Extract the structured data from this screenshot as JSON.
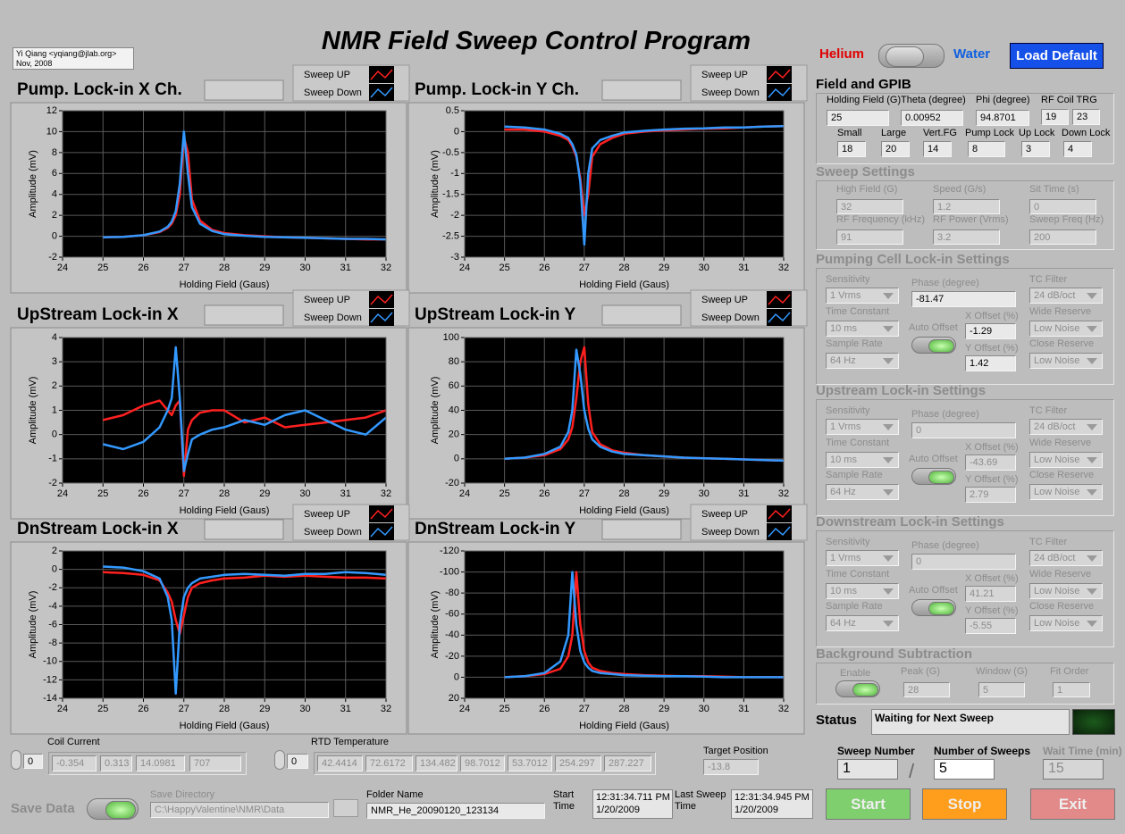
{
  "header": {
    "title": "NMR Field Sweep Control Program",
    "author": "Yi Qiang <yqiang@jlab.org>",
    "date": "Nov, 2008"
  },
  "mode": {
    "left": "Helium",
    "right": "Water",
    "load_default": "Load Default"
  },
  "field_gpib": {
    "title": "Field and GPIB",
    "fields": [
      {
        "label": "Holding Field (G)",
        "values": [
          25
        ]
      },
      {
        "label": "Theta (degree)",
        "values": [
          0.00952
        ]
      },
      {
        "label": "Phi (degree)",
        "values": [
          94.8701
        ]
      },
      {
        "label": "RF Coil TRG",
        "values": [
          19,
          23
        ]
      },
      {
        "label": "Small",
        "values": [
          18
        ]
      },
      {
        "label": "Large",
        "values": [
          20
        ]
      },
      {
        "label": "Vert.FG",
        "values": [
          14
        ]
      },
      {
        "label": "Pump Lock",
        "values": [
          8
        ]
      },
      {
        "label": "Up Lock",
        "values": [
          3
        ]
      },
      {
        "label": "Down Lock",
        "values": [
          4
        ]
      }
    ]
  },
  "sweep_settings": {
    "title": "Sweep Settings",
    "fields": [
      {
        "label": "High Field (G)",
        "value": 32
      },
      {
        "label": "Speed (G/s)",
        "value": 1.2
      },
      {
        "label": "Sit Time (s)",
        "value": 0
      },
      {
        "label": "RF Frequency (kHz)",
        "value": 91
      },
      {
        "label": "RF Power (Vrms)",
        "value": 3.2
      },
      {
        "label": "Sweep Freq (Hz)",
        "value": 200
      }
    ]
  },
  "lockins": [
    {
      "title": "Pumping Cell Lock-in Settings",
      "auto_offset": "Auto Offset",
      "fields": [
        {
          "label": "Sensitivity",
          "value": "1 Vrms"
        },
        {
          "label": "Phase (degree)",
          "value": -81.47
        },
        {
          "label": "TC Filter",
          "value": "24 dB/oct"
        },
        {
          "label": "Time Constant",
          "value": "10 ms"
        },
        {
          "label": "X Offset (%)",
          "value": -1.29
        },
        {
          "label": "Wide Reserve",
          "value": "Low Noise"
        },
        {
          "label": "Sample Rate",
          "value": "64 Hz"
        },
        {
          "label": "Y Offset (%)",
          "value": 1.42
        },
        {
          "label": "Close Reserve",
          "value": "Low Noise"
        }
      ]
    },
    {
      "title": "Upstream Lock-in Settings",
      "auto_offset": "Auto Offset",
      "fields": [
        {
          "label": "Sensitivity",
          "value": "1 Vrms"
        },
        {
          "label": "Phase (degree)",
          "value": 0
        },
        {
          "label": "TC Filter",
          "value": "24 dB/oct"
        },
        {
          "label": "Time Constant",
          "value": "10 ms"
        },
        {
          "label": "X Offset (%)",
          "value": -43.69
        },
        {
          "label": "Wide Reserve",
          "value": "Low Noise"
        },
        {
          "label": "Sample Rate",
          "value": "64 Hz"
        },
        {
          "label": "Y Offset (%)",
          "value": 2.79
        },
        {
          "label": "Close Reserve",
          "value": "Low Noise"
        }
      ]
    },
    {
      "title": "Downstream Lock-in Settings",
      "auto_offset": "Auto Offset",
      "fields": [
        {
          "label": "Sensitivity",
          "value": "1 Vrms"
        },
        {
          "label": "Phase (degree)",
          "value": 0
        },
        {
          "label": "TC Filter",
          "value": "24 dB/oct"
        },
        {
          "label": "Time Constant",
          "value": "10 ms"
        },
        {
          "label": "X Offset (%)",
          "value": 41.21
        },
        {
          "label": "Wide Reserve",
          "value": "Low Noise"
        },
        {
          "label": "Sample Rate",
          "value": "64 Hz"
        },
        {
          "label": "Y Offset (%)",
          "value": -5.55
        },
        {
          "label": "Close Reserve",
          "value": "Low Noise"
        }
      ]
    }
  ],
  "background": {
    "title": "Background Subtraction",
    "enable": "Enable",
    "fields": [
      {
        "label": "Peak (G)",
        "value": 28
      },
      {
        "label": "Window (G)",
        "value": 5
      },
      {
        "label": "Fit Order",
        "value": 1
      }
    ]
  },
  "status": {
    "label": "Status",
    "value": "Waiting for Next Sweep"
  },
  "sweep_count": {
    "separator": "/",
    "fields": [
      {
        "label": "Sweep Number",
        "value": 1
      },
      {
        "label": "Number of Sweeps",
        "value": 5
      },
      {
        "label": "Wait Time (min)",
        "value": 15
      }
    ]
  },
  "buttons": [
    "Start",
    "Stop",
    "Exit"
  ],
  "coil_current": {
    "label": "Coil Current",
    "index": 0,
    "values": [
      -0.354,
      0.313,
      14.0981,
      707
    ]
  },
  "rtd_temperature": {
    "label": "RTD Temperature",
    "index": 0,
    "values": [
      42.4414,
      72.6172,
      134.482,
      98.7012,
      53.7012,
      254.297,
      287.227
    ]
  },
  "target_position": {
    "label": "Target Position",
    "value": -13.8
  },
  "save": {
    "label": "Save Data",
    "directory_label": "Save Directory",
    "directory": "C:\\HappyValentine\\NMR\\Data",
    "folder_label": "Folder Name",
    "folder": "NMR_He_20090120_123134"
  },
  "start_time": {
    "label": "Start Time",
    "time": "12:31:34.711 PM",
    "date": "1/20/2009"
  },
  "last_sweep_time": {
    "label": "Last Sweep Time",
    "time": "12:31:34.945 PM",
    "date": "1/20/2009"
  },
  "chart_data": [
    {
      "type": "line",
      "title": "Pump. Lock-in X Ch.",
      "x_label": "Holding Field (Gaus)",
      "y_label": "Amplitude (mV)",
      "x": [
        25,
        25.5,
        26,
        26.4,
        26.6,
        26.7,
        26.8,
        26.9,
        27.0,
        27.1,
        27.2,
        27.4,
        27.7,
        28,
        28.5,
        29,
        29.5,
        30,
        30.5,
        31,
        31.5,
        32
      ],
      "xlim": [
        24,
        32
      ],
      "xticks": [
        24,
        25,
        26,
        27,
        28,
        29,
        30,
        31,
        32
      ],
      "ylim": [
        -2,
        12
      ],
      "yticks": [
        -2,
        0,
        2,
        4,
        6,
        8,
        10,
        12
      ],
      "grid": true,
      "series": [
        {
          "name": "Sweep UP",
          "color": "#ff2020",
          "values": [
            -0.1,
            -0.05,
            0.1,
            0.4,
            0.8,
            1.2,
            2,
            4,
            9.5,
            8,
            3.5,
            1.5,
            0.6,
            0.3,
            0.1,
            0,
            -0.1,
            -0.15,
            -0.2,
            -0.25,
            -0.3,
            -0.3
          ]
        },
        {
          "name": "Sweep Down",
          "color": "#3399ff",
          "values": [
            -0.1,
            -0.05,
            0.1,
            0.45,
            0.9,
            1.4,
            2.4,
            5,
            10,
            6,
            2.8,
            1.2,
            0.5,
            0.2,
            0.05,
            -0.05,
            -0.1,
            -0.15,
            -0.2,
            -0.25,
            -0.25,
            -0.3
          ]
        }
      ]
    },
    {
      "type": "line",
      "title": "Pump. Lock-in Y Ch.",
      "x_label": "Holding Field (Gaus)",
      "y_label": "Amplitude (mV)",
      "x": [
        25,
        25.5,
        26,
        26.4,
        26.6,
        26.7,
        26.8,
        26.9,
        27.0,
        27.1,
        27.2,
        27.4,
        27.7,
        28,
        28.5,
        29,
        29.5,
        30,
        30.5,
        31,
        31.5,
        32
      ],
      "xlim": [
        24,
        32
      ],
      "xticks": [
        24,
        25,
        26,
        27,
        28,
        29,
        30,
        31,
        32
      ],
      "ylim": [
        -3,
        0.5
      ],
      "yticks": [
        -3,
        -2.5,
        -2,
        -1.5,
        -1,
        -0.5,
        0,
        0.5
      ],
      "grid": true,
      "series": [
        {
          "name": "Sweep UP",
          "color": "#ff2020",
          "values": [
            0.05,
            0.05,
            0,
            -0.1,
            -0.2,
            -0.35,
            -0.6,
            -1.1,
            -2,
            -1.5,
            -0.6,
            -0.3,
            -0.15,
            -0.05,
            0,
            0.03,
            0.05,
            0.07,
            0.08,
            0.1,
            0.12,
            0.13
          ]
        },
        {
          "name": "Sweep Down",
          "color": "#3399ff",
          "values": [
            0.12,
            0.1,
            0.05,
            -0.05,
            -0.15,
            -0.3,
            -0.55,
            -1.2,
            -2.7,
            -1,
            -0.4,
            -0.2,
            -0.1,
            -0.02,
            0.02,
            0.05,
            0.07,
            0.08,
            0.1,
            0.1,
            0.12,
            0.13
          ]
        }
      ]
    },
    {
      "type": "line",
      "title": "UpStream Lock-in X",
      "x_label": "Holding Field (Gaus)",
      "y_label": "Amplitude (mV)",
      "x": [
        25,
        25.5,
        26,
        26.4,
        26.6,
        26.7,
        26.8,
        26.9,
        27.0,
        27.1,
        27.2,
        27.4,
        27.7,
        28,
        28.5,
        29,
        29.5,
        30,
        30.5,
        31,
        31.5,
        32
      ],
      "xlim": [
        24,
        32
      ],
      "xticks": [
        24,
        25,
        26,
        27,
        28,
        29,
        30,
        31,
        32
      ],
      "ylim": [
        -2,
        4
      ],
      "yticks": [
        -2,
        -1,
        0,
        1,
        2,
        3,
        4
      ],
      "grid": true,
      "series": [
        {
          "name": "Sweep UP",
          "color": "#ff2020",
          "values": [
            0.6,
            0.8,
            1.2,
            1.4,
            1,
            0.8,
            1.2,
            1.4,
            -1.7,
            0.2,
            0.6,
            0.9,
            1,
            1,
            0.5,
            0.7,
            0.3,
            0.4,
            0.5,
            0.6,
            0.7,
            1
          ]
        },
        {
          "name": "Sweep Down",
          "color": "#3399ff",
          "values": [
            -0.4,
            -0.6,
            -0.3,
            0.3,
            1,
            1.5,
            3.6,
            1.5,
            -1.5,
            -0.8,
            -0.2,
            0,
            0.2,
            0.3,
            0.6,
            0.4,
            0.8,
            1,
            0.6,
            0.2,
            0,
            0.7
          ]
        }
      ]
    },
    {
      "type": "line",
      "title": "UpStream Lock-in Y",
      "x_label": "Holding Field (Gaus)",
      "y_label": "Amplitude (mV)",
      "x": [
        25,
        25.5,
        26,
        26.4,
        26.6,
        26.7,
        26.8,
        26.9,
        27.0,
        27.1,
        27.2,
        27.4,
        27.7,
        28,
        28.5,
        29,
        29.5,
        30,
        30.5,
        31,
        31.5,
        32
      ],
      "xlim": [
        24,
        32
      ],
      "xticks": [
        24,
        25,
        26,
        27,
        28,
        29,
        30,
        31,
        32
      ],
      "ylim": [
        -20,
        100
      ],
      "yticks": [
        -20,
        0,
        20,
        40,
        60,
        80,
        100
      ],
      "grid": true,
      "series": [
        {
          "name": "Sweep UP",
          "color": "#ff2020",
          "values": [
            0,
            1,
            3,
            8,
            16,
            26,
            50,
            80,
            92,
            45,
            22,
            12,
            7,
            5,
            3,
            2,
            1,
            0.5,
            0,
            -0.5,
            -1,
            -1.5
          ]
        },
        {
          "name": "Sweep Down",
          "color": "#3399ff",
          "values": [
            0,
            1,
            4,
            10,
            22,
            40,
            90,
            70,
            40,
            25,
            16,
            10,
            6,
            4,
            3,
            2,
            1,
            0.5,
            0,
            -0.5,
            -1,
            -1.5
          ]
        }
      ]
    },
    {
      "type": "line",
      "title": "DnStream Lock-in X",
      "x_label": "Holding Field (Gaus)",
      "y_label": "Amplitude (mV)",
      "x": [
        25,
        25.5,
        26,
        26.4,
        26.6,
        26.7,
        26.8,
        26.9,
        27.0,
        27.1,
        27.2,
        27.4,
        27.7,
        28,
        28.5,
        29,
        29.5,
        30,
        30.5,
        31,
        31.5,
        32
      ],
      "xlim": [
        24,
        32
      ],
      "xticks": [
        24,
        25,
        26,
        27,
        28,
        29,
        30,
        31,
        32
      ],
      "ylim": [
        -14,
        2
      ],
      "yticks": [
        -14,
        -12,
        -10,
        -8,
        -6,
        -4,
        -2,
        0,
        2
      ],
      "grid": true,
      "series": [
        {
          "name": "Sweep UP",
          "color": "#ff2020",
          "values": [
            -0.3,
            -0.4,
            -0.6,
            -1.2,
            -2.5,
            -3.5,
            -5.5,
            -7,
            -5,
            -3,
            -2,
            -1.5,
            -1.2,
            -1,
            -0.9,
            -0.7,
            -0.8,
            -0.7,
            -0.8,
            -0.9,
            -0.9,
            -1
          ]
        },
        {
          "name": "Sweep Down",
          "color": "#3399ff",
          "values": [
            0.3,
            0.2,
            -0.2,
            -1,
            -3,
            -5.5,
            -13.5,
            -6,
            -3,
            -2,
            -1.5,
            -1,
            -0.8,
            -0.6,
            -0.5,
            -0.6,
            -0.7,
            -0.5,
            -0.5,
            -0.3,
            -0.4,
            -0.6
          ]
        }
      ]
    },
    {
      "type": "line",
      "title": "DnStream Lock-in Y",
      "x_label": "Holding Field (Gaus)",
      "y_label": "Amplitude (mV)",
      "x": [
        25,
        25.5,
        26,
        26.4,
        26.6,
        26.7,
        26.8,
        26.9,
        27.0,
        27.1,
        27.2,
        27.4,
        27.7,
        28,
        28.5,
        29,
        29.5,
        30,
        30.5,
        31,
        31.5,
        32
      ],
      "xlim": [
        24,
        32
      ],
      "xticks": [
        24,
        25,
        26,
        27,
        28,
        29,
        30,
        31,
        32
      ],
      "ylim": [
        20,
        -120
      ],
      "yticks": [
        20,
        0,
        -20,
        -40,
        -60,
        -80,
        -100,
        -120
      ],
      "grid": true,
      "series": [
        {
          "name": "Sweep UP",
          "color": "#ff2020",
          "values": [
            0,
            -1,
            -3,
            -8,
            -20,
            -40,
            -100,
            -50,
            -25,
            -14,
            -9,
            -6,
            -4,
            -3,
            -2,
            -1.5,
            -1,
            -1,
            -0.5,
            0,
            0,
            0
          ]
        },
        {
          "name": "Sweep Down",
          "color": "#3399ff",
          "values": [
            0,
            -1,
            -4,
            -15,
            -40,
            -100,
            -50,
            -25,
            -14,
            -9,
            -6,
            -4,
            -3,
            -2,
            -1.5,
            -1,
            -1,
            -0.5,
            0,
            0,
            0,
            0
          ]
        }
      ]
    }
  ]
}
